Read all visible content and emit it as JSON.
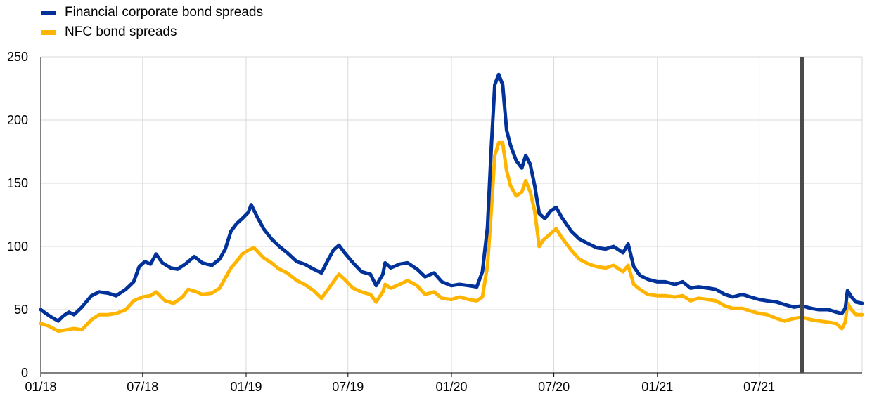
{
  "chart_data": {
    "type": "line",
    "title": "",
    "xlabel": "",
    "ylabel": "",
    "ylim": [
      0,
      250
    ],
    "yticks": [
      0,
      50,
      100,
      150,
      200,
      250
    ],
    "x_tick_labels": [
      "01/18",
      "07/18",
      "01/19",
      "07/19",
      "01/20",
      "07/20",
      "01/21",
      "07/21"
    ],
    "x_tick_dates": [
      "2018-01-01",
      "2018-07-01",
      "2019-01-01",
      "2019-07-01",
      "2020-01-01",
      "2020-07-01",
      "2021-01-01",
      "2021-07-01"
    ],
    "x_range": [
      "2018-01-01",
      "2021-12-31"
    ],
    "grid": "vertical and horizontal",
    "legend_position": "top-left",
    "vertical_marker": {
      "date": "2021-09-15",
      "color": "#4a4a4a"
    },
    "series": [
      {
        "name": "Financial corporate bond spreads",
        "color": "#003299",
        "points": [
          [
            "2018-01-01",
            50
          ],
          [
            "2018-01-10",
            47
          ],
          [
            "2018-01-20",
            44
          ],
          [
            "2018-02-01",
            41
          ],
          [
            "2018-02-10",
            45
          ],
          [
            "2018-02-20",
            48
          ],
          [
            "2018-03-01",
            46
          ],
          [
            "2018-03-15",
            52
          ],
          [
            "2018-04-01",
            61
          ],
          [
            "2018-04-15",
            64
          ],
          [
            "2018-05-01",
            63
          ],
          [
            "2018-05-15",
            61
          ],
          [
            "2018-06-01",
            66
          ],
          [
            "2018-06-15",
            72
          ],
          [
            "2018-06-25",
            84
          ],
          [
            "2018-07-05",
            88
          ],
          [
            "2018-07-15",
            86
          ],
          [
            "2018-07-25",
            94
          ],
          [
            "2018-08-05",
            87
          ],
          [
            "2018-08-20",
            83
          ],
          [
            "2018-09-01",
            82
          ],
          [
            "2018-09-15",
            86
          ],
          [
            "2018-10-01",
            92
          ],
          [
            "2018-10-15",
            87
          ],
          [
            "2018-11-01",
            85
          ],
          [
            "2018-11-15",
            90
          ],
          [
            "2018-11-25",
            98
          ],
          [
            "2018-12-05",
            112
          ],
          [
            "2018-12-15",
            118
          ],
          [
            "2018-12-25",
            122
          ],
          [
            "2019-01-05",
            127
          ],
          [
            "2019-01-10",
            133
          ],
          [
            "2019-01-20",
            124
          ],
          [
            "2019-02-01",
            114
          ],
          [
            "2019-02-15",
            106
          ],
          [
            "2019-03-01",
            100
          ],
          [
            "2019-03-15",
            95
          ],
          [
            "2019-04-01",
            88
          ],
          [
            "2019-04-15",
            86
          ],
          [
            "2019-05-01",
            82
          ],
          [
            "2019-05-15",
            79
          ],
          [
            "2019-05-25",
            88
          ],
          [
            "2019-06-05",
            97
          ],
          [
            "2019-06-15",
            101
          ],
          [
            "2019-06-25",
            95
          ],
          [
            "2019-07-10",
            87
          ],
          [
            "2019-07-25",
            80
          ],
          [
            "2019-08-10",
            78
          ],
          [
            "2019-08-20",
            69
          ],
          [
            "2019-09-01",
            78
          ],
          [
            "2019-09-05",
            87
          ],
          [
            "2019-09-15",
            83
          ],
          [
            "2019-10-01",
            86
          ],
          [
            "2019-10-15",
            87
          ],
          [
            "2019-11-01",
            82
          ],
          [
            "2019-11-15",
            76
          ],
          [
            "2019-12-01",
            79
          ],
          [
            "2019-12-15",
            72
          ],
          [
            "2020-01-01",
            69
          ],
          [
            "2020-01-15",
            70
          ],
          [
            "2020-02-01",
            69
          ],
          [
            "2020-02-15",
            68
          ],
          [
            "2020-02-25",
            80
          ],
          [
            "2020-03-05",
            115
          ],
          [
            "2020-03-12",
            180
          ],
          [
            "2020-03-18",
            228
          ],
          [
            "2020-03-25",
            236
          ],
          [
            "2020-04-01",
            228
          ],
          [
            "2020-04-08",
            192
          ],
          [
            "2020-04-15",
            180
          ],
          [
            "2020-04-25",
            168
          ],
          [
            "2020-05-05",
            162
          ],
          [
            "2020-05-12",
            172
          ],
          [
            "2020-05-20",
            165
          ],
          [
            "2020-05-28",
            148
          ],
          [
            "2020-06-05",
            126
          ],
          [
            "2020-06-15",
            122
          ],
          [
            "2020-06-25",
            128
          ],
          [
            "2020-07-05",
            131
          ],
          [
            "2020-07-15",
            123
          ],
          [
            "2020-08-01",
            112
          ],
          [
            "2020-08-15",
            106
          ],
          [
            "2020-09-01",
            102
          ],
          [
            "2020-09-15",
            99
          ],
          [
            "2020-10-01",
            98
          ],
          [
            "2020-10-15",
            100
          ],
          [
            "2020-11-01",
            95
          ],
          [
            "2020-11-10",
            102
          ],
          [
            "2020-11-20",
            84
          ],
          [
            "2020-12-01",
            77
          ],
          [
            "2020-12-15",
            74
          ],
          [
            "2021-01-01",
            72
          ],
          [
            "2021-01-15",
            72
          ],
          [
            "2021-02-01",
            70
          ],
          [
            "2021-02-15",
            72
          ],
          [
            "2021-03-01",
            67
          ],
          [
            "2021-03-15",
            68
          ],
          [
            "2021-04-01",
            67
          ],
          [
            "2021-04-15",
            66
          ],
          [
            "2021-05-01",
            62
          ],
          [
            "2021-05-15",
            60
          ],
          [
            "2021-06-01",
            62
          ],
          [
            "2021-06-15",
            60
          ],
          [
            "2021-07-01",
            58
          ],
          [
            "2021-07-15",
            57
          ],
          [
            "2021-08-01",
            56
          ],
          [
            "2021-08-15",
            54
          ],
          [
            "2021-09-01",
            52
          ],
          [
            "2021-09-15",
            53
          ],
          [
            "2021-10-01",
            51
          ],
          [
            "2021-10-15",
            50
          ],
          [
            "2021-11-01",
            50
          ],
          [
            "2021-11-15",
            48
          ],
          [
            "2021-11-25",
            47
          ],
          [
            "2021-12-01",
            51
          ],
          [
            "2021-12-05",
            65
          ],
          [
            "2021-12-12",
            60
          ],
          [
            "2021-12-20",
            56
          ],
          [
            "2021-12-31",
            55
          ]
        ]
      },
      {
        "name": "NFC bond spreads",
        "color": "#FFB400",
        "points": [
          [
            "2018-01-01",
            39
          ],
          [
            "2018-01-15",
            37
          ],
          [
            "2018-02-01",
            33
          ],
          [
            "2018-02-15",
            34
          ],
          [
            "2018-03-01",
            35
          ],
          [
            "2018-03-15",
            34
          ],
          [
            "2018-04-01",
            42
          ],
          [
            "2018-04-15",
            46
          ],
          [
            "2018-05-01",
            46
          ],
          [
            "2018-05-15",
            47
          ],
          [
            "2018-06-01",
            50
          ],
          [
            "2018-06-15",
            57
          ],
          [
            "2018-07-01",
            60
          ],
          [
            "2018-07-15",
            61
          ],
          [
            "2018-07-25",
            64
          ],
          [
            "2018-08-10",
            57
          ],
          [
            "2018-08-25",
            55
          ],
          [
            "2018-09-10",
            60
          ],
          [
            "2018-09-20",
            66
          ],
          [
            "2018-10-05",
            64
          ],
          [
            "2018-10-15",
            62
          ],
          [
            "2018-11-01",
            63
          ],
          [
            "2018-11-15",
            67
          ],
          [
            "2018-11-25",
            75
          ],
          [
            "2018-12-05",
            83
          ],
          [
            "2018-12-15",
            88
          ],
          [
            "2018-12-25",
            94
          ],
          [
            "2019-01-05",
            97
          ],
          [
            "2019-01-15",
            99
          ],
          [
            "2019-02-01",
            91
          ],
          [
            "2019-02-15",
            87
          ],
          [
            "2019-03-01",
            82
          ],
          [
            "2019-03-15",
            79
          ],
          [
            "2019-04-01",
            73
          ],
          [
            "2019-04-15",
            70
          ],
          [
            "2019-05-01",
            65
          ],
          [
            "2019-05-15",
            59
          ],
          [
            "2019-05-25",
            65
          ],
          [
            "2019-06-05",
            72
          ],
          [
            "2019-06-15",
            78
          ],
          [
            "2019-06-25",
            74
          ],
          [
            "2019-07-10",
            67
          ],
          [
            "2019-07-25",
            64
          ],
          [
            "2019-08-10",
            62
          ],
          [
            "2019-08-20",
            56
          ],
          [
            "2019-09-01",
            64
          ],
          [
            "2019-09-05",
            70
          ],
          [
            "2019-09-15",
            67
          ],
          [
            "2019-10-01",
            70
          ],
          [
            "2019-10-15",
            73
          ],
          [
            "2019-11-01",
            69
          ],
          [
            "2019-11-15",
            62
          ],
          [
            "2019-12-01",
            64
          ],
          [
            "2019-12-15",
            59
          ],
          [
            "2020-01-01",
            58
          ],
          [
            "2020-01-15",
            60
          ],
          [
            "2020-02-01",
            58
          ],
          [
            "2020-02-15",
            57
          ],
          [
            "2020-02-25",
            60
          ],
          [
            "2020-03-05",
            85
          ],
          [
            "2020-03-12",
            130
          ],
          [
            "2020-03-18",
            172
          ],
          [
            "2020-03-25",
            182
          ],
          [
            "2020-04-01",
            182
          ],
          [
            "2020-04-08",
            160
          ],
          [
            "2020-04-15",
            148
          ],
          [
            "2020-04-25",
            140
          ],
          [
            "2020-05-05",
            143
          ],
          [
            "2020-05-12",
            152
          ],
          [
            "2020-05-20",
            143
          ],
          [
            "2020-05-28",
            128
          ],
          [
            "2020-06-05",
            100
          ],
          [
            "2020-06-12",
            105
          ],
          [
            "2020-06-25",
            110
          ],
          [
            "2020-07-05",
            114
          ],
          [
            "2020-07-15",
            107
          ],
          [
            "2020-08-01",
            97
          ],
          [
            "2020-08-15",
            90
          ],
          [
            "2020-09-01",
            86
          ],
          [
            "2020-09-15",
            84
          ],
          [
            "2020-10-01",
            83
          ],
          [
            "2020-10-15",
            85
          ],
          [
            "2020-11-01",
            80
          ],
          [
            "2020-11-10",
            85
          ],
          [
            "2020-11-20",
            70
          ],
          [
            "2020-12-01",
            66
          ],
          [
            "2020-12-15",
            62
          ],
          [
            "2021-01-01",
            61
          ],
          [
            "2021-01-15",
            61
          ],
          [
            "2021-02-01",
            60
          ],
          [
            "2021-02-15",
            61
          ],
          [
            "2021-03-01",
            57
          ],
          [
            "2021-03-15",
            59
          ],
          [
            "2021-04-01",
            58
          ],
          [
            "2021-04-15",
            57
          ],
          [
            "2021-05-01",
            53
          ],
          [
            "2021-05-15",
            51
          ],
          [
            "2021-06-01",
            51
          ],
          [
            "2021-06-15",
            49
          ],
          [
            "2021-07-01",
            47
          ],
          [
            "2021-07-15",
            46
          ],
          [
            "2021-08-01",
            43
          ],
          [
            "2021-08-15",
            41
          ],
          [
            "2021-09-01",
            43
          ],
          [
            "2021-09-15",
            44
          ],
          [
            "2021-10-01",
            42
          ],
          [
            "2021-10-15",
            41
          ],
          [
            "2021-11-01",
            40
          ],
          [
            "2021-11-15",
            39
          ],
          [
            "2021-11-25",
            35
          ],
          [
            "2021-12-01",
            40
          ],
          [
            "2021-12-05",
            55
          ],
          [
            "2021-12-12",
            50
          ],
          [
            "2021-12-20",
            46
          ],
          [
            "2021-12-31",
            46
          ]
        ]
      }
    ]
  }
}
